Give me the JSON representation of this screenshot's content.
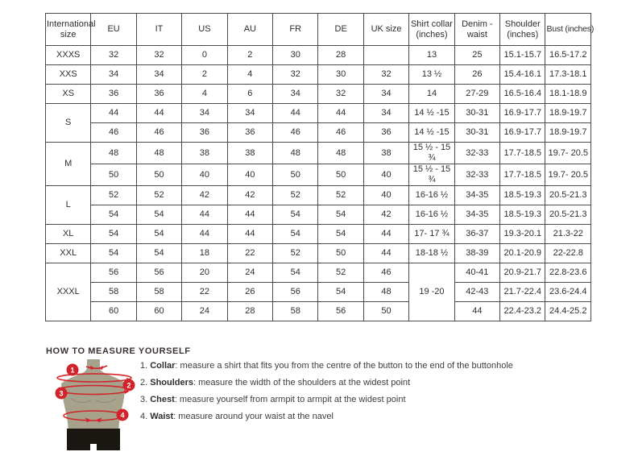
{
  "size_chart": {
    "headers": [
      "International size",
      "EU",
      "IT",
      "US",
      "AU",
      "FR",
      "DE",
      "UK size",
      "Shirt collar (inches)",
      "Denim - waist",
      "Shoulder (inches)",
      "Bust (inches)"
    ],
    "rows": [
      {
        "cells": [
          {
            "t": "XXXS"
          },
          {
            "t": "32"
          },
          {
            "t": "32"
          },
          {
            "t": "0"
          },
          {
            "t": "2"
          },
          {
            "t": "30"
          },
          {
            "t": "28"
          },
          {
            "t": ""
          },
          {
            "t": "13"
          },
          {
            "t": "25"
          },
          {
            "t": "15.1-15.7"
          },
          {
            "t": "16.5-17.2"
          }
        ]
      },
      {
        "cells": [
          {
            "t": "XXS"
          },
          {
            "t": "34"
          },
          {
            "t": "34"
          },
          {
            "t": "2"
          },
          {
            "t": "4"
          },
          {
            "t": "32"
          },
          {
            "t": "30"
          },
          {
            "t": "32"
          },
          {
            "t": "13 ½"
          },
          {
            "t": "26"
          },
          {
            "t": "15.4-16.1"
          },
          {
            "t": "17.3-18.1"
          }
        ]
      },
      {
        "cells": [
          {
            "t": "XS"
          },
          {
            "t": "36"
          },
          {
            "t": "36"
          },
          {
            "t": "4"
          },
          {
            "t": "6"
          },
          {
            "t": "34"
          },
          {
            "t": "32"
          },
          {
            "t": "34"
          },
          {
            "t": "14"
          },
          {
            "t": "27-29"
          },
          {
            "t": "16.5-16.4"
          },
          {
            "t": "18.1-18.9"
          }
        ]
      },
      {
        "cells": [
          {
            "t": "S",
            "rs": 2
          },
          {
            "t": "44"
          },
          {
            "t": "44"
          },
          {
            "t": "34"
          },
          {
            "t": "34"
          },
          {
            "t": "44"
          },
          {
            "t": "44"
          },
          {
            "t": "34"
          },
          {
            "t": "14 ½ -15"
          },
          {
            "t": "30-31"
          },
          {
            "t": "16.9-17.7"
          },
          {
            "t": "18.9-19.7"
          }
        ]
      },
      {
        "cells": [
          {
            "t": "46"
          },
          {
            "t": "46"
          },
          {
            "t": "36"
          },
          {
            "t": "36"
          },
          {
            "t": "46"
          },
          {
            "t": "46"
          },
          {
            "t": "36"
          },
          {
            "t": "14 ½ -15"
          },
          {
            "t": "30-31"
          },
          {
            "t": "16.9-17.7"
          },
          {
            "t": "18.9-19.7"
          }
        ]
      },
      {
        "cells": [
          {
            "t": "M",
            "rs": 2
          },
          {
            "t": "48"
          },
          {
            "t": "48"
          },
          {
            "t": "38"
          },
          {
            "t": "38"
          },
          {
            "t": "48"
          },
          {
            "t": "48"
          },
          {
            "t": "38"
          },
          {
            "t": "15 ½ - 15 ¾"
          },
          {
            "t": "32-33"
          },
          {
            "t": "17.7-18.5"
          },
          {
            "t": "19.7- 20.5"
          }
        ]
      },
      {
        "cells": [
          {
            "t": "50"
          },
          {
            "t": "50"
          },
          {
            "t": "40"
          },
          {
            "t": "40"
          },
          {
            "t": "50"
          },
          {
            "t": "50"
          },
          {
            "t": "40"
          },
          {
            "t": "15 ½ - 15 ¾"
          },
          {
            "t": "32-33"
          },
          {
            "t": "17.7-18.5"
          },
          {
            "t": "19.7- 20.5"
          }
        ]
      },
      {
        "cells": [
          {
            "t": "L",
            "rs": 2
          },
          {
            "t": "52"
          },
          {
            "t": "52"
          },
          {
            "t": "42"
          },
          {
            "t": "42"
          },
          {
            "t": "52"
          },
          {
            "t": "52"
          },
          {
            "t": "40"
          },
          {
            "t": "16-16 ½"
          },
          {
            "t": "34-35"
          },
          {
            "t": "18.5-19.3"
          },
          {
            "t": "20.5-21.3"
          }
        ]
      },
      {
        "cells": [
          {
            "t": "54"
          },
          {
            "t": "54"
          },
          {
            "t": "44"
          },
          {
            "t": "44"
          },
          {
            "t": "54"
          },
          {
            "t": "54"
          },
          {
            "t": "42"
          },
          {
            "t": "16-16 ½"
          },
          {
            "t": "34-35"
          },
          {
            "t": "18.5-19.3"
          },
          {
            "t": "20.5-21.3"
          }
        ]
      },
      {
        "cells": [
          {
            "t": "XL"
          },
          {
            "t": "54"
          },
          {
            "t": "54"
          },
          {
            "t": "44"
          },
          {
            "t": "44"
          },
          {
            "t": "54"
          },
          {
            "t": "54"
          },
          {
            "t": "44"
          },
          {
            "t": "17- 17 ¾"
          },
          {
            "t": "36-37"
          },
          {
            "t": "19.3-20.1"
          },
          {
            "t": "21.3-22"
          }
        ]
      },
      {
        "cells": [
          {
            "t": "XXL"
          },
          {
            "t": "54"
          },
          {
            "t": "54"
          },
          {
            "t": "18"
          },
          {
            "t": "22"
          },
          {
            "t": "52"
          },
          {
            "t": "50"
          },
          {
            "t": "44"
          },
          {
            "t": "18-18 ½"
          },
          {
            "t": "38-39"
          },
          {
            "t": "20.1-20.9"
          },
          {
            "t": "22-22.8"
          }
        ]
      },
      {
        "cells": [
          {
            "t": "XXXL",
            "rs": 3
          },
          {
            "t": "56"
          },
          {
            "t": "56"
          },
          {
            "t": "20"
          },
          {
            "t": "24"
          },
          {
            "t": "54"
          },
          {
            "t": "52"
          },
          {
            "t": "46"
          },
          {
            "t": "19 -20",
            "rs": 3
          },
          {
            "t": "40-41"
          },
          {
            "t": "20.9-21.7"
          },
          {
            "t": "22.8-23.6"
          }
        ]
      },
      {
        "cells": [
          {
            "t": "58"
          },
          {
            "t": "58"
          },
          {
            "t": "22"
          },
          {
            "t": "26"
          },
          {
            "t": "56"
          },
          {
            "t": "54"
          },
          {
            "t": "48"
          },
          {
            "t": "42-43"
          },
          {
            "t": "21.7-22.4"
          },
          {
            "t": "23.6-24.4"
          }
        ]
      },
      {
        "cells": [
          {
            "t": "60"
          },
          {
            "t": "60"
          },
          {
            "t": "24"
          },
          {
            "t": "28"
          },
          {
            "t": "58"
          },
          {
            "t": "56"
          },
          {
            "t": "50"
          },
          {
            "t": "44"
          },
          {
            "t": "22.4-23.2"
          },
          {
            "t": "24.4-25.2"
          }
        ]
      }
    ]
  },
  "measure_guide": {
    "title": "HOW TO MEASURE YOURSELF",
    "items": [
      {
        "num": "1.",
        "label": "Collar",
        "text": ": measure a shirt that fits you from the centre of the button to the end of the buttonhole"
      },
      {
        "num": "2.",
        "label": "Shoulders",
        "text": ": measure the width of the shoulders at the widest point"
      },
      {
        "num": "3.",
        "label": "Chest",
        "text": ": measure yourself from armpit to armpit at the widest point"
      },
      {
        "num": "4.",
        "label": "Waist",
        "text": ": measure around your waist at the navel"
      }
    ],
    "figure_markers": [
      "1",
      "2",
      "3",
      "4"
    ]
  },
  "colors": {
    "accent_red": "#d2232a",
    "mannequin_body": "#a6a28b",
    "mannequin_shorts": "#1a1713",
    "table_border": "#4a4a4a",
    "text": "#3d3d3d"
  }
}
